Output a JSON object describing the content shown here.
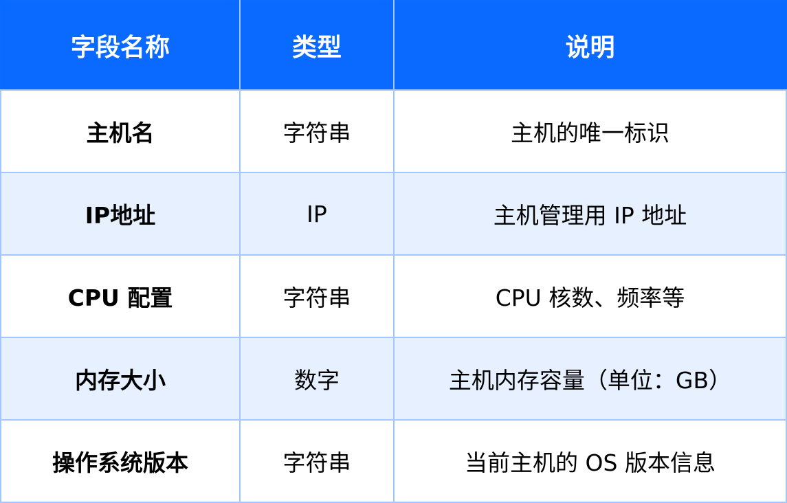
{
  "colors": {
    "header": "#0a6aff",
    "alt_row": "#e6f0ff",
    "grid": "#a2c7ff"
  },
  "headers": [
    "字段名称",
    "类型",
    "说明"
  ],
  "rows": [
    {
      "name": "主机名",
      "type": "字符串",
      "desc": "主机的唯一标识"
    },
    {
      "name": "IP地址",
      "type": "IP",
      "desc": "主机管理用 IP 地址"
    },
    {
      "name": "CPU 配置",
      "type": "字符串",
      "desc": "CPU 核数、频率等"
    },
    {
      "name": "内存大小",
      "type": "数字",
      "desc": "主机内存容量（单位：GB）"
    },
    {
      "name": "操作系统版本",
      "type": "字符串",
      "desc": "当前主机的 OS 版本信息"
    }
  ]
}
